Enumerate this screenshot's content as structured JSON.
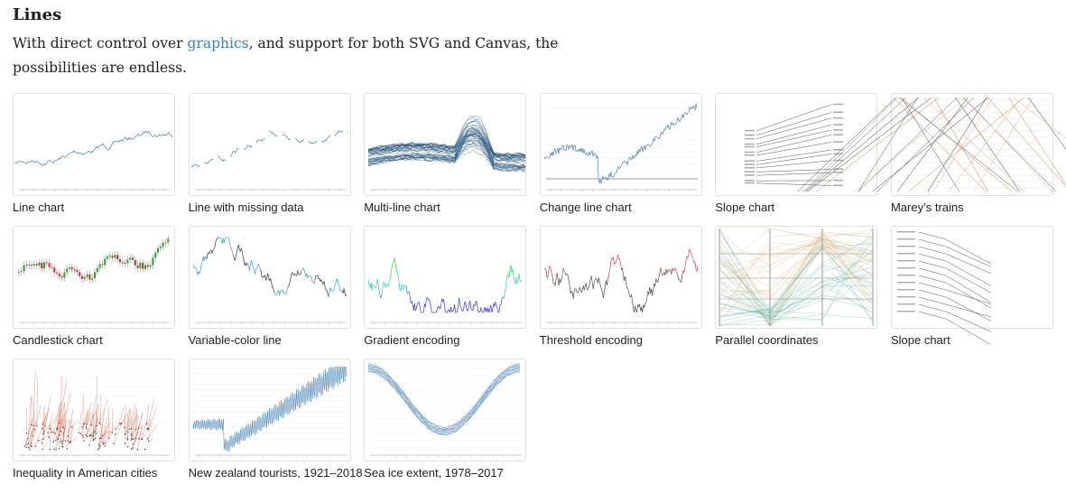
{
  "section": {
    "title": "Lines",
    "desc_before": "With direct control over ",
    "desc_link": "graphics",
    "desc_after": ", and support for both SVG and Canvas, the possibilities are endless."
  },
  "colors": {
    "link": "#3b7fb5",
    "line": "#4682b4",
    "red": "#d62728",
    "green": "#2ca02c"
  },
  "cards": [
    {
      "caption": "Line chart",
      "thumb": "line-chart-thumbnail"
    },
    {
      "caption": "Line with missing data",
      "thumb": "line-missing-data-thumbnail"
    },
    {
      "caption": "Multi-line chart",
      "thumb": "multi-line-chart-thumbnail"
    },
    {
      "caption": "Change line chart",
      "thumb": "change-line-chart-thumbnail"
    },
    {
      "caption": "Slope chart",
      "thumb": "slope-chart-thumbnail"
    },
    {
      "caption": "Marey’s trains",
      "thumb": "mareys-trains-thumbnail"
    },
    {
      "caption": "Candlestick chart",
      "thumb": "candlestick-chart-thumbnail"
    },
    {
      "caption": "Variable-color line",
      "thumb": "variable-color-line-thumbnail"
    },
    {
      "caption": "Gradient encoding",
      "thumb": "gradient-encoding-thumbnail"
    },
    {
      "caption": "Threshold encoding",
      "thumb": "threshold-encoding-thumbnail"
    },
    {
      "caption": "Parallel coordinates",
      "thumb": "parallel-coordinates-thumbnail"
    },
    {
      "caption": "Slope chart",
      "thumb": "slope-chart-thumbnail"
    },
    {
      "caption": "Inequality in American cities",
      "thumb": "inequality-thumbnail"
    },
    {
      "caption": "New zealand tourists, 1921–2018",
      "thumb": "nz-tourists-thumbnail"
    },
    {
      "caption": "Sea ice extent, 1978–2017",
      "thumb": "sea-ice-thumbnail"
    }
  ]
}
